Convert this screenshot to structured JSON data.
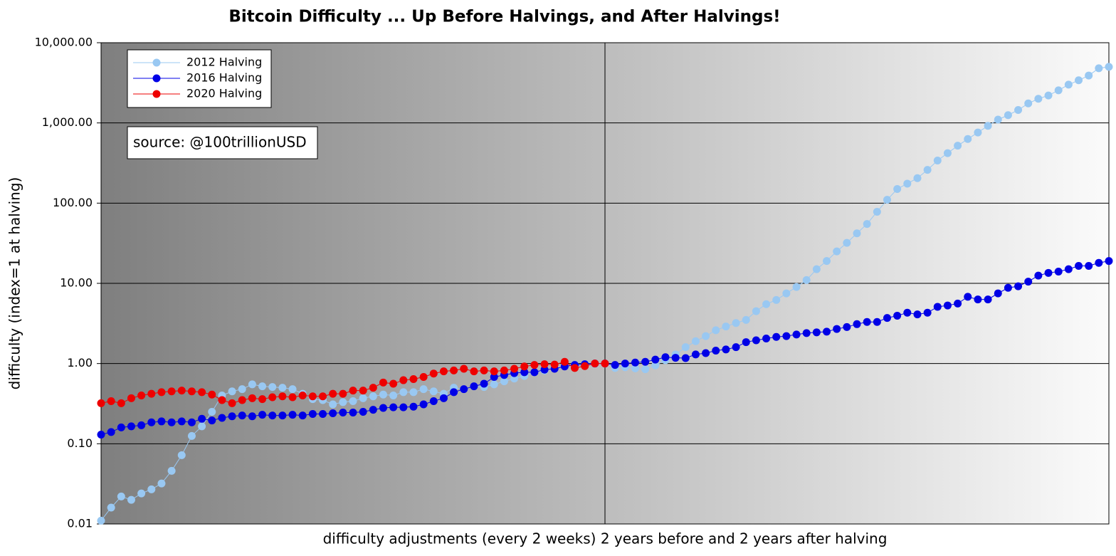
{
  "chart_data": {
    "type": "line",
    "title": "Bitcoin Difficulty ... Up Before Halvings, and After Halvings!",
    "xlabel": "difficulty adjustments (every 2 weeks) 2 years before and 2 years after halving",
    "ylabel": "difficulty (index=1 at halving)",
    "annotation": "source: @100trillionUSD",
    "x": [
      -50,
      -49,
      -48,
      -47,
      -46,
      -45,
      -44,
      -43,
      -42,
      -41,
      -40,
      -39,
      -38,
      -37,
      -36,
      -35,
      -34,
      -33,
      -32,
      -31,
      -30,
      -29,
      -28,
      -27,
      -26,
      -25,
      -24,
      -23,
      -22,
      -21,
      -20,
      -19,
      -18,
      -17,
      -16,
      -15,
      -14,
      -13,
      -12,
      -11,
      -10,
      -9,
      -8,
      -7,
      -6,
      -5,
      -4,
      -3,
      -2,
      -1,
      0,
      1,
      2,
      3,
      4,
      5,
      6,
      7,
      8,
      9,
      10,
      11,
      12,
      13,
      14,
      15,
      16,
      17,
      18,
      19,
      20,
      21,
      22,
      23,
      24,
      25,
      26,
      27,
      28,
      29,
      30,
      31,
      32,
      33,
      34,
      35,
      36,
      37,
      38,
      39,
      40,
      41,
      42,
      43,
      44,
      45,
      46,
      47,
      48,
      49,
      50
    ],
    "xlim": [
      -50,
      50
    ],
    "xticks": [
      0
    ],
    "ylog": true,
    "ylim": [
      0.01,
      10000
    ],
    "yticks": [
      {
        "value": 0.01,
        "label": "0.01"
      },
      {
        "value": 0.1,
        "label": "0.10"
      },
      {
        "value": 1,
        "label": "1.00"
      },
      {
        "value": 10,
        "label": "10.00"
      },
      {
        "value": 100,
        "label": "100.00"
      },
      {
        "value": 1000,
        "label": "1,000.00"
      },
      {
        "value": 10000,
        "label": "10,000.00"
      }
    ],
    "grid": true,
    "legend": "upper left",
    "series": [
      {
        "name": "2012 Halving",
        "color": "#99c8f2",
        "values": [
          0.011,
          0.016,
          0.022,
          0.02,
          0.024,
          0.027,
          0.032,
          0.046,
          0.072,
          0.125,
          0.165,
          0.25,
          0.4,
          0.45,
          0.48,
          0.55,
          0.52,
          0.51,
          0.5,
          0.48,
          0.42,
          0.36,
          0.35,
          0.31,
          0.33,
          0.34,
          0.37,
          0.39,
          0.41,
          0.4,
          0.44,
          0.44,
          0.48,
          0.45,
          0.42,
          0.5,
          0.48,
          0.52,
          0.51,
          0.55,
          0.6,
          0.65,
          0.7,
          0.78,
          0.82,
          0.88,
          0.93,
          0.96,
          0.98,
          0.99,
          1.0,
          0.88,
          0.9,
          0.87,
          0.85,
          0.95,
          1.1,
          1.3,
          1.6,
          1.9,
          2.2,
          2.6,
          2.9,
          3.2,
          3.5,
          4.5,
          5.5,
          6.2,
          7.5,
          9.0,
          11,
          15,
          19,
          25,
          32,
          42,
          55,
          78,
          110,
          150,
          175,
          205,
          260,
          340,
          420,
          520,
          630,
          760,
          920,
          1100,
          1250,
          1450,
          1750,
          2000,
          2200,
          2550,
          3000,
          3400,
          3900,
          4800,
          5000
        ]
      },
      {
        "name": "2016 Halving",
        "color": "#0000e6",
        "values": [
          0.13,
          0.14,
          0.16,
          0.165,
          0.17,
          0.185,
          0.19,
          0.185,
          0.19,
          0.185,
          0.205,
          0.195,
          0.21,
          0.22,
          0.225,
          0.22,
          0.23,
          0.225,
          0.225,
          0.23,
          0.225,
          0.235,
          0.235,
          0.24,
          0.245,
          0.245,
          0.25,
          0.265,
          0.28,
          0.285,
          0.285,
          0.29,
          0.31,
          0.34,
          0.37,
          0.44,
          0.48,
          0.52,
          0.56,
          0.68,
          0.72,
          0.76,
          0.78,
          0.78,
          0.84,
          0.86,
          0.92,
          0.96,
          0.98,
          1.0,
          1.0,
          0.96,
          1.0,
          1.03,
          1.05,
          1.12,
          1.2,
          1.18,
          1.17,
          1.3,
          1.35,
          1.45,
          1.5,
          1.6,
          1.85,
          1.95,
          2.05,
          2.15,
          2.2,
          2.3,
          2.4,
          2.45,
          2.5,
          2.7,
          2.85,
          3.1,
          3.3,
          3.3,
          3.7,
          3.95,
          4.3,
          4.1,
          4.3,
          5.1,
          5.3,
          5.6,
          6.8,
          6.3,
          6.3,
          7.5,
          8.8,
          9.2,
          10.5,
          12.5,
          13.5,
          14,
          15,
          16.5,
          16.5,
          18,
          19
        ]
      },
      {
        "name": "2020 Halving",
        "color": "#ee0000",
        "values": [
          0.32,
          0.34,
          0.32,
          0.37,
          0.4,
          0.42,
          0.44,
          0.45,
          0.46,
          0.45,
          0.44,
          0.41,
          0.35,
          0.32,
          0.35,
          0.37,
          0.36,
          0.38,
          0.39,
          0.38,
          0.4,
          0.39,
          0.39,
          0.42,
          0.42,
          0.46,
          0.46,
          0.5,
          0.58,
          0.56,
          0.62,
          0.64,
          0.68,
          0.75,
          0.8,
          0.82,
          0.86,
          0.8,
          0.82,
          0.8,
          0.82,
          0.86,
          0.92,
          0.96,
          0.98,
          0.97,
          1.05,
          0.88,
          0.93,
          1.0,
          1.0,
          null,
          null,
          null,
          null,
          null,
          null,
          null,
          null,
          null,
          null,
          null,
          null,
          null,
          null,
          null,
          null,
          null,
          null,
          null,
          null,
          null,
          null,
          null,
          null,
          null,
          null,
          null,
          null,
          null,
          null,
          null,
          null,
          null,
          null,
          null,
          null,
          null,
          null,
          null,
          null,
          null,
          null,
          null,
          null,
          null,
          null,
          null,
          null,
          null,
          null
        ]
      }
    ]
  }
}
